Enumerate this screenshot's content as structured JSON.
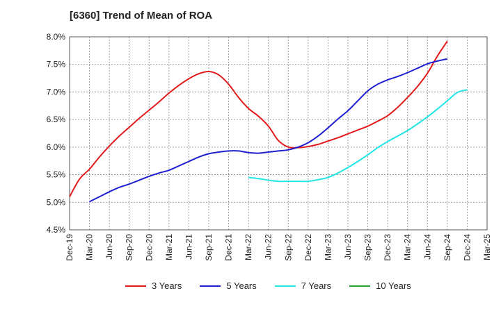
{
  "chart_data": {
    "type": "line",
    "title": "[6360]  Trend of Mean of ROA",
    "xlabel": "",
    "ylabel": "",
    "x_ticks": [
      "Dec-19",
      "Mar-20",
      "Jun-20",
      "Sep-20",
      "Dec-20",
      "Mar-21",
      "Jun-21",
      "Sep-21",
      "Dec-21",
      "Mar-22",
      "Jun-22",
      "Sep-22",
      "Dec-22",
      "Mar-23",
      "Jun-23",
      "Sep-23",
      "Dec-23",
      "Mar-24",
      "Jun-24",
      "Sep-24",
      "Dec-24",
      "Mar-25"
    ],
    "y_ticks": [
      "8.0%",
      "7.5%",
      "7.0%",
      "6.5%",
      "6.0%",
      "5.5%",
      "5.0%",
      "4.5%"
    ],
    "ylim": [
      4.5,
      8.0
    ],
    "grid": true,
    "legend_position": "bottom",
    "series": [
      {
        "name": "3 Years",
        "color": "#e31a1c",
        "values": [
          [
            0,
            5.1
          ],
          [
            0.5,
            5.42
          ],
          [
            1,
            5.6
          ],
          [
            1.5,
            5.82
          ],
          [
            2,
            6.02
          ],
          [
            2.5,
            6.2
          ],
          [
            3,
            6.36
          ],
          [
            3.5,
            6.52
          ],
          [
            4,
            6.67
          ],
          [
            4.5,
            6.82
          ],
          [
            5,
            6.98
          ],
          [
            5.5,
            7.12
          ],
          [
            6,
            7.24
          ],
          [
            6.5,
            7.33
          ],
          [
            7,
            7.37
          ],
          [
            7.5,
            7.31
          ],
          [
            8,
            7.14
          ],
          [
            8.5,
            6.9
          ],
          [
            9,
            6.7
          ],
          [
            9.5,
            6.56
          ],
          [
            10,
            6.38
          ],
          [
            10.5,
            6.12
          ],
          [
            11,
            6.0
          ],
          [
            11.5,
            5.99
          ],
          [
            12,
            6.01
          ],
          [
            12.5,
            6.05
          ],
          [
            13,
            6.11
          ],
          [
            13.5,
            6.17
          ],
          [
            14,
            6.24
          ],
          [
            14.5,
            6.31
          ],
          [
            15,
            6.38
          ],
          [
            15.5,
            6.47
          ],
          [
            16,
            6.57
          ],
          [
            16.5,
            6.72
          ],
          [
            17,
            6.9
          ],
          [
            17.5,
            7.1
          ],
          [
            18,
            7.34
          ],
          [
            18.5,
            7.65
          ],
          [
            19,
            7.92
          ]
        ]
      },
      {
        "name": "5 Years",
        "color": "#1f1fcf",
        "values": [
          [
            1,
            5.01
          ],
          [
            1.5,
            5.1
          ],
          [
            2,
            5.19
          ],
          [
            2.5,
            5.27
          ],
          [
            3,
            5.33
          ],
          [
            3.5,
            5.4
          ],
          [
            4,
            5.47
          ],
          [
            4.5,
            5.53
          ],
          [
            5,
            5.58
          ],
          [
            5.5,
            5.66
          ],
          [
            6,
            5.74
          ],
          [
            6.5,
            5.82
          ],
          [
            7,
            5.88
          ],
          [
            7.5,
            5.91
          ],
          [
            8,
            5.93
          ],
          [
            8.5,
            5.93
          ],
          [
            9,
            5.9
          ],
          [
            9.5,
            5.89
          ],
          [
            10,
            5.91
          ],
          [
            10.5,
            5.93
          ],
          [
            11,
            5.95
          ],
          [
            11.5,
            6.0
          ],
          [
            12,
            6.08
          ],
          [
            12.5,
            6.2
          ],
          [
            13,
            6.35
          ],
          [
            13.5,
            6.51
          ],
          [
            14,
            6.66
          ],
          [
            14.5,
            6.84
          ],
          [
            15,
            7.02
          ],
          [
            15.5,
            7.14
          ],
          [
            16,
            7.22
          ],
          [
            16.5,
            7.28
          ],
          [
            17,
            7.35
          ],
          [
            17.5,
            7.43
          ],
          [
            18,
            7.51
          ],
          [
            18.5,
            7.56
          ],
          [
            19,
            7.6
          ]
        ]
      },
      {
        "name": "7 Years",
        "color": "#22e6e6",
        "values": [
          [
            9,
            5.45
          ],
          [
            9.5,
            5.43
          ],
          [
            10,
            5.4
          ],
          [
            10.5,
            5.38
          ],
          [
            11,
            5.38
          ],
          [
            11.5,
            5.38
          ],
          [
            12,
            5.38
          ],
          [
            12.5,
            5.41
          ],
          [
            13,
            5.45
          ],
          [
            13.5,
            5.53
          ],
          [
            14,
            5.63
          ],
          [
            14.5,
            5.74
          ],
          [
            15,
            5.86
          ],
          [
            15.5,
            5.99
          ],
          [
            16,
            6.1
          ],
          [
            16.5,
            6.2
          ],
          [
            17,
            6.3
          ],
          [
            17.5,
            6.42
          ],
          [
            18,
            6.55
          ],
          [
            18.5,
            6.69
          ],
          [
            19,
            6.84
          ],
          [
            19.5,
            6.99
          ],
          [
            20,
            7.04
          ]
        ]
      },
      {
        "name": "10 Years",
        "color": "#2ca02c",
        "values": []
      }
    ]
  }
}
